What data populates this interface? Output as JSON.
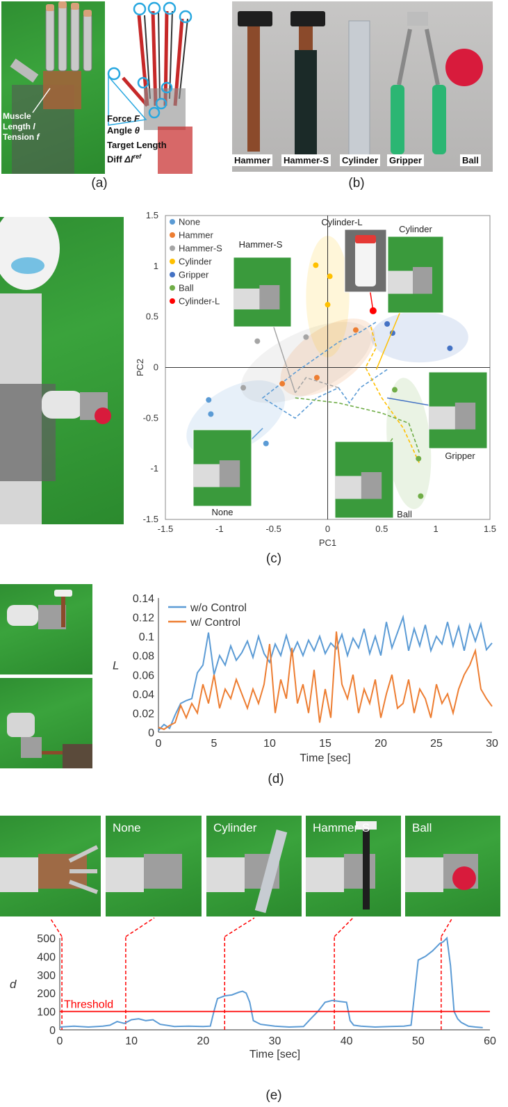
{
  "panels": {
    "a": {
      "label": "(a)",
      "annotations": {
        "muscle1": "Muscle",
        "muscle2": "Length",
        "muscle2_sym": "l",
        "muscle3": "Tension",
        "muscle3_sym": "f",
        "force": "Force",
        "force_sym": "F",
        "angle": "Angle",
        "angle_sym": "θ",
        "target1": "Target Length",
        "target2": "Diff",
        "target2_sym": "Δl",
        "target2_sup": "ref"
      }
    },
    "b": {
      "label": "(b)",
      "tools": [
        "Hammer",
        "Hammer-S",
        "Cylinder",
        "Gripper",
        "Ball"
      ]
    },
    "c": {
      "label": "(c)",
      "photo_labels": {
        "hammer_s": "Hammer-S",
        "cylinder_l": "Cylinder-L",
        "cylinder": "Cylinder",
        "gripper": "Gripper",
        "none": "None",
        "ball": "Ball"
      }
    },
    "d": {
      "label": "(d)"
    },
    "e": {
      "label": "(e)",
      "photo_labels": [
        "None",
        "Cylinder",
        "Hammer-S",
        "Ball"
      ]
    }
  },
  "chart_data": [
    {
      "type": "scatter",
      "xlabel": "PC1",
      "ylabel": "PC2",
      "xlim": [
        -1.5,
        1.5
      ],
      "ylim": [
        -1.5,
        1.5
      ],
      "xticks": [
        "-1.5",
        "-1",
        "-0.5",
        "0",
        "0.5",
        "1",
        "1.5"
      ],
      "yticks": [
        "1.5",
        "1",
        "0.5",
        "0",
        "-0.5",
        "-1",
        "-1.5"
      ],
      "legend_position": "top-left",
      "series": [
        {
          "name": "None",
          "color": "#5b9bd5",
          "points": [
            [
              -1.1,
              -0.32
            ],
            [
              -1.08,
              -0.46
            ],
            [
              -0.57,
              -0.75
            ]
          ]
        },
        {
          "name": "Hammer",
          "color": "#ed7d31",
          "points": [
            [
              -0.42,
              -0.16
            ],
            [
              -0.1,
              -0.1
            ],
            [
              0.26,
              0.37
            ]
          ]
        },
        {
          "name": "Hammer-S",
          "color": "#a5a5a5",
          "points": [
            [
              -0.78,
              -0.2
            ],
            [
              -0.65,
              0.26
            ],
            [
              -0.2,
              0.3
            ]
          ]
        },
        {
          "name": "Cylinder",
          "color": "#ffc000",
          "points": [
            [
              -0.11,
              1.01
            ],
            [
              0.02,
              0.9
            ],
            [
              0.0,
              0.62
            ]
          ]
        },
        {
          "name": "Gripper",
          "color": "#4472c4",
          "points": [
            [
              0.55,
              0.43
            ],
            [
              0.6,
              0.34
            ],
            [
              1.13,
              0.19
            ]
          ]
        },
        {
          "name": "Ball",
          "color": "#70ad47",
          "points": [
            [
              0.62,
              -0.22
            ],
            [
              0.84,
              -0.9
            ],
            [
              0.86,
              -1.27
            ]
          ]
        },
        {
          "name": "Cylinder-L",
          "color": "#ff0000",
          "points": [
            [
              0.42,
              0.56
            ]
          ]
        }
      ]
    },
    {
      "type": "line",
      "xlabel": "Time [sec]",
      "ylabel": "L",
      "xlim": [
        0,
        30
      ],
      "ylim": [
        0,
        0.14
      ],
      "xticks": [
        "0",
        "5",
        "10",
        "15",
        "20",
        "25",
        "30"
      ],
      "yticks": [
        "0",
        "0.02",
        "0.04",
        "0.06",
        "0.08",
        "0.1",
        "0.12",
        "0.14"
      ],
      "legend_position": "top-left",
      "series": [
        {
          "name": "w/o Control",
          "color": "#5b9bd5",
          "x": [
            0,
            0.5,
            1,
            1.5,
            2,
            2.5,
            3,
            3.5,
            4,
            4.5,
            5,
            5.5,
            6,
            6.5,
            7,
            7.5,
            8,
            8.5,
            9,
            9.5,
            10,
            10.5,
            11,
            11.5,
            12,
            12.5,
            13,
            13.5,
            14,
            14.5,
            15,
            15.5,
            16,
            16.5,
            17,
            17.5,
            18,
            18.5,
            19,
            19.5,
            20,
            20.5,
            21,
            21.5,
            22,
            22.5,
            23,
            23.5,
            24,
            24.5,
            25,
            25.5,
            26,
            26.5,
            27,
            27.5,
            28,
            28.5,
            29,
            29.5,
            30
          ],
          "y": [
            0.002,
            0.008,
            0.004,
            0.018,
            0.03,
            0.033,
            0.035,
            0.062,
            0.07,
            0.104,
            0.06,
            0.08,
            0.07,
            0.09,
            0.075,
            0.083,
            0.095,
            0.078,
            0.1,
            0.082,
            0.073,
            0.092,
            0.08,
            0.101,
            0.081,
            0.094,
            0.08,
            0.096,
            0.085,
            0.1,
            0.082,
            0.093,
            0.087,
            0.102,
            0.08,
            0.098,
            0.088,
            0.108,
            0.082,
            0.1,
            0.08,
            0.115,
            0.088,
            0.104,
            0.12,
            0.085,
            0.108,
            0.09,
            0.112,
            0.085,
            0.1,
            0.092,
            0.115,
            0.09,
            0.11,
            0.085,
            0.112,
            0.095,
            0.113,
            0.086,
            0.093
          ]
        },
        {
          "name": "w/ Control",
          "color": "#ed7d31",
          "x": [
            0,
            0.5,
            1,
            1.5,
            2,
            2.5,
            3,
            3.5,
            4,
            4.5,
            5,
            5.5,
            6,
            6.5,
            7,
            7.5,
            8,
            8.5,
            9,
            9.5,
            10,
            10.5,
            11,
            11.5,
            12,
            12.5,
            13,
            13.5,
            14,
            14.5,
            15,
            15.5,
            16,
            16.5,
            17,
            17.5,
            18,
            18.5,
            19,
            19.5,
            20,
            20.5,
            21,
            21.5,
            22,
            22.5,
            23,
            23.5,
            24,
            24.5,
            25,
            25.5,
            26,
            26.5,
            27,
            27.5,
            28,
            28.5,
            29,
            29.5,
            30
          ],
          "y": [
            0.005,
            0.003,
            0.007,
            0.01,
            0.028,
            0.015,
            0.03,
            0.02,
            0.05,
            0.03,
            0.06,
            0.025,
            0.045,
            0.035,
            0.055,
            0.04,
            0.025,
            0.045,
            0.03,
            0.05,
            0.092,
            0.02,
            0.055,
            0.035,
            0.088,
            0.03,
            0.05,
            0.02,
            0.065,
            0.01,
            0.045,
            0.015,
            0.105,
            0.05,
            0.035,
            0.06,
            0.02,
            0.045,
            0.03,
            0.055,
            0.015,
            0.04,
            0.06,
            0.025,
            0.03,
            0.055,
            0.02,
            0.045,
            0.035,
            0.015,
            0.05,
            0.03,
            0.04,
            0.02,
            0.045,
            0.06,
            0.07,
            0.085,
            0.045,
            0.035,
            0.027
          ]
        }
      ]
    },
    {
      "type": "line",
      "xlabel": "Time [sec]",
      "ylabel": "d",
      "xlim": [
        0,
        60
      ],
      "ylim": [
        0,
        500
      ],
      "xticks": [
        "0",
        "10",
        "20",
        "30",
        "40",
        "50",
        "60"
      ],
      "yticks": [
        "0",
        "100",
        "200",
        "300",
        "400",
        "500"
      ],
      "threshold": {
        "label": "Threshold",
        "value": 100,
        "color": "#ff0000"
      },
      "markers_sec": [
        0.3,
        9.2,
        23,
        38.3,
        53.2
      ],
      "series": [
        {
          "name": "d",
          "color": "#5b9bd5",
          "x": [
            0,
            2,
            4,
            6,
            7,
            8,
            8.5,
            9,
            10,
            11,
            12,
            13,
            14,
            16,
            18,
            20,
            21,
            21.5,
            22,
            23,
            24,
            25,
            25.5,
            26,
            26.5,
            27,
            28,
            30,
            32,
            34,
            35,
            36,
            37,
            38,
            39,
            40,
            40.5,
            41,
            42,
            44,
            46,
            48,
            49,
            49.5,
            50,
            51,
            52,
            52.5,
            53,
            53.5,
            54,
            54.5,
            55,
            55.5,
            56,
            57,
            58,
            59
          ],
          "y": [
            15,
            20,
            15,
            20,
            25,
            45,
            40,
            35,
            55,
            60,
            50,
            55,
            30,
            18,
            20,
            18,
            20,
            100,
            170,
            185,
            190,
            205,
            210,
            200,
            150,
            50,
            30,
            20,
            15,
            18,
            60,
            100,
            150,
            160,
            155,
            150,
            50,
            25,
            20,
            15,
            18,
            20,
            25,
            200,
            380,
            400,
            430,
            450,
            470,
            480,
            500,
            350,
            100,
            60,
            40,
            20,
            15,
            12
          ]
        }
      ]
    }
  ]
}
